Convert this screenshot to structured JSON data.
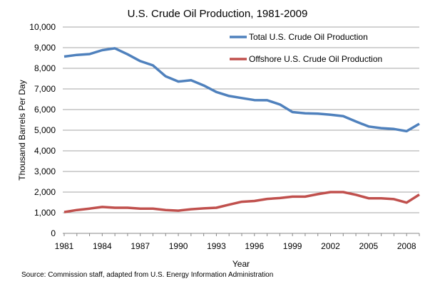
{
  "chart_data": {
    "type": "line",
    "title": "U.S. Crude Oil Production, 1981-2009",
    "xlabel": "Year",
    "ylabel": "Thousand Barrels Per Day",
    "source": "Source: Commission staff, adapted from U.S. Energy Information Administration",
    "xlim": [
      1981,
      2009
    ],
    "ylim": [
      0,
      10000
    ],
    "x_ticks": [
      1981,
      1984,
      1987,
      1990,
      1993,
      1996,
      1999,
      2002,
      2005,
      2008
    ],
    "y_ticks": [
      "0",
      "1,000",
      "2,000",
      "3,000",
      "4,000",
      "5,000",
      "6,000",
      "7,000",
      "8,000",
      "9,000",
      "10,000"
    ],
    "grid": "horizontal",
    "legend_position": "top-right",
    "x": [
      1981,
      1982,
      1983,
      1984,
      1985,
      1986,
      1987,
      1988,
      1989,
      1990,
      1991,
      1992,
      1993,
      1994,
      1995,
      1996,
      1997,
      1998,
      1999,
      2000,
      2001,
      2002,
      2003,
      2004,
      2005,
      2006,
      2007,
      2008,
      2009
    ],
    "series": [
      {
        "name": "Total U.S. Crude Oil Production",
        "color": "#4F81BD",
        "values": [
          8570,
          8650,
          8690,
          8880,
          8970,
          8680,
          8350,
          8140,
          7610,
          7360,
          7420,
          7170,
          6850,
          6660,
          6560,
          6460,
          6450,
          6250,
          5880,
          5820,
          5800,
          5750,
          5680,
          5420,
          5180,
          5100,
          5060,
          4950,
          5310
        ]
      },
      {
        "name": "Offshore U.S. Crude Oil Production",
        "color": "#C0504D",
        "values": [
          1030,
          1130,
          1200,
          1280,
          1240,
          1240,
          1200,
          1200,
          1130,
          1100,
          1170,
          1210,
          1240,
          1390,
          1530,
          1570,
          1670,
          1710,
          1780,
          1780,
          1900,
          2000,
          2000,
          1870,
          1700,
          1700,
          1660,
          1490,
          1880
        ]
      }
    ]
  }
}
